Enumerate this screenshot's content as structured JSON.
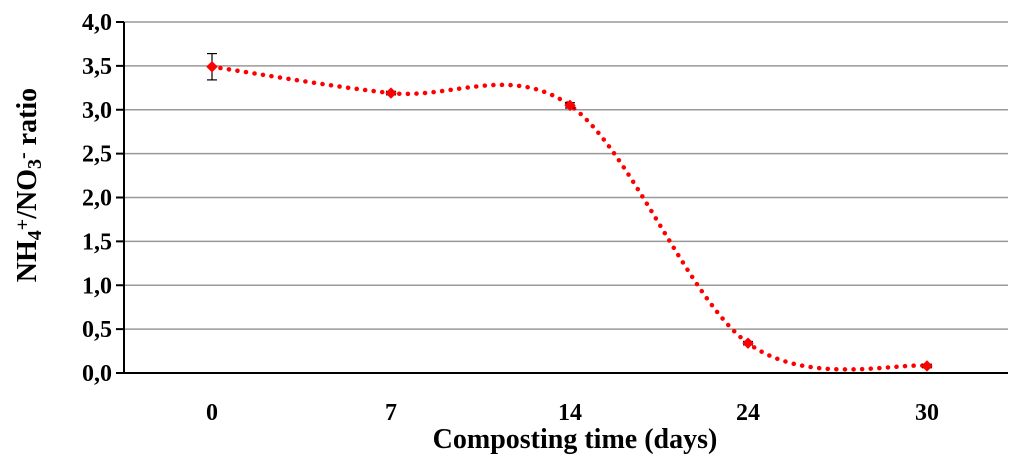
{
  "chart_data": {
    "type": "line",
    "title": "",
    "xlabel": "Composting time (days)",
    "ylabel": {
      "parts": [
        {
          "text": "NH",
          "shift": "none"
        },
        {
          "text": "4",
          "shift": "sub"
        },
        {
          "text": "+",
          "shift": "super"
        },
        {
          "text": "/NO",
          "shift": "none"
        },
        {
          "text": "3",
          "shift": "sub"
        },
        {
          "text": "-",
          "shift": "super"
        },
        {
          "text": " ratio",
          "shift": "none"
        }
      ]
    },
    "categories": [
      "0",
      "7",
      "14",
      "24",
      "30"
    ],
    "series": [
      {
        "values": [
          3.49,
          3.19,
          3.05,
          0.34,
          0.08
        ],
        "errors": [
          0.15,
          0.02,
          0.03,
          0.02,
          0.02
        ],
        "color": "#ff0000",
        "line_style": "dotted",
        "smoothed": true
      }
    ],
    "ylim": [
      0,
      4
    ],
    "yticks": [
      "0,0",
      "0,5",
      "1,0",
      "1,5",
      "2,0",
      "2,5",
      "3,0",
      "3,5",
      "4,0"
    ],
    "ytick_values": [
      0,
      0.5,
      1,
      1.5,
      2,
      2.5,
      3,
      3.5,
      4
    ],
    "grid": "horizontal",
    "legend": "none"
  }
}
